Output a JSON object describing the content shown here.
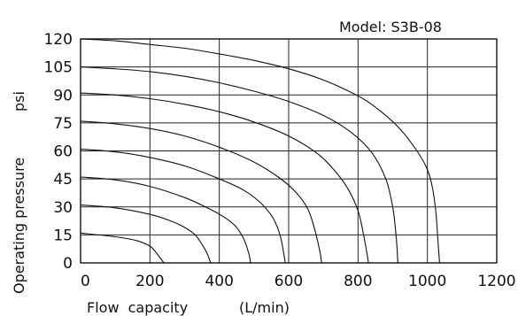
{
  "model_label": "Model: S3B-08",
  "chart_data": {
    "type": "line",
    "title": "Model: S3B-08",
    "xlabel": "Flow capacity",
    "xunit": "(L/min)",
    "ylabel": "Operating pressure",
    "yunit": "psi",
    "xlim": [
      0,
      1200
    ],
    "ylim": [
      0,
      120
    ],
    "x_ticks": [
      0,
      200,
      400,
      600,
      800,
      1000,
      1200
    ],
    "y_ticks": [
      0,
      15,
      30,
      45,
      60,
      75,
      90,
      105,
      120
    ],
    "grid": true,
    "series": [
      {
        "x": [
          0,
          100,
          160,
          200,
          220,
          240
        ],
        "y": [
          16,
          14,
          12,
          9,
          5,
          0
        ]
      },
      {
        "x": [
          0,
          100,
          200,
          260,
          300,
          330,
          350,
          365,
          375
        ],
        "y": [
          31,
          29.5,
          26,
          22.5,
          19,
          15,
          10,
          5,
          0
        ]
      },
      {
        "x": [
          0,
          100,
          200,
          300,
          360,
          410,
          445,
          470,
          485,
          490
        ],
        "y": [
          46,
          44.5,
          41,
          35,
          30,
          25,
          20,
          13,
          5,
          0
        ]
      },
      {
        "x": [
          0,
          100,
          200,
          300,
          400,
          470,
          520,
          555,
          575,
          585,
          590
        ],
        "y": [
          61,
          59.5,
          56.5,
          52,
          45,
          39,
          32,
          24,
          15,
          6,
          0
        ]
      },
      {
        "x": [
          0,
          100,
          200,
          300,
          400,
          500,
          570,
          620,
          655,
          675,
          690,
          695
        ],
        "y": [
          76,
          74.5,
          72,
          68,
          62,
          54,
          46,
          38,
          29,
          18,
          6,
          0
        ]
      },
      {
        "x": [
          0,
          100,
          200,
          300,
          400,
          500,
          600,
          680,
          730,
          770,
          800,
          815,
          825,
          830
        ],
        "y": [
          91,
          90,
          88,
          85,
          81,
          75.5,
          68,
          59,
          50,
          40,
          28,
          16,
          6,
          0
        ]
      },
      {
        "x": [
          0,
          100,
          200,
          300,
          400,
          500,
          600,
          700,
          780,
          840,
          880,
          900,
          910,
          915
        ],
        "y": [
          105,
          104,
          102.5,
          100,
          96.5,
          92,
          86.5,
          79,
          70,
          59,
          45,
          30,
          14,
          0
        ]
      },
      {
        "x": [
          0,
          100,
          200,
          300,
          400,
          500,
          600,
          700,
          800,
          860,
          920,
          970,
          1000,
          1015,
          1025,
          1030,
          1035
        ],
        "y": [
          120,
          119,
          117,
          115,
          112,
          108.5,
          104,
          98,
          89.5,
          82,
          72,
          60,
          50,
          40,
          26,
          13,
          0
        ]
      }
    ]
  }
}
